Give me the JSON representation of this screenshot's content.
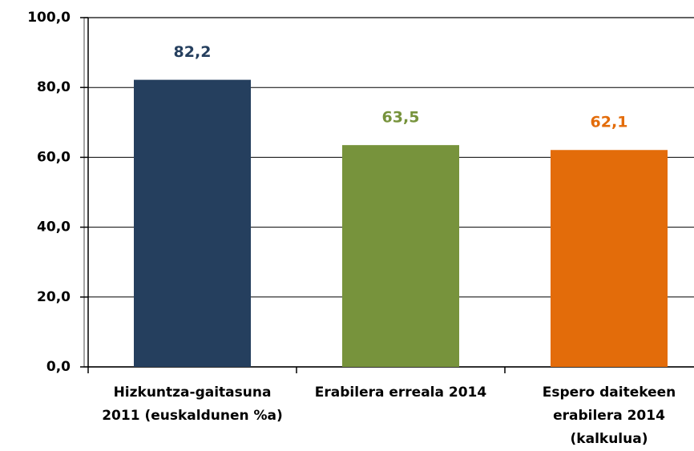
{
  "chart_data": {
    "type": "bar",
    "categories": [
      "Hizkuntza-gaitasuna 2011 (euskaldunen %a)",
      "Erabilera erreala 2014",
      "Espero daitekeen erabilera 2014 (kalkulua)"
    ],
    "values": [
      82.2,
      63.5,
      62.1
    ],
    "value_labels": [
      "82,2",
      "63,5",
      "62,1"
    ],
    "colors": [
      "#253f5e",
      "#77933c",
      "#e36c0a"
    ],
    "ylim": [
      0,
      100
    ],
    "yticks": [
      {
        "value": 0,
        "label": "0,0"
      },
      {
        "value": 20,
        "label": "20,0"
      },
      {
        "value": 40,
        "label": "40,0"
      },
      {
        "value": 60,
        "label": "60,0"
      },
      {
        "value": 80,
        "label": "80,0"
      },
      {
        "value": 100,
        "label": "100,0"
      }
    ],
    "grid": true
  }
}
